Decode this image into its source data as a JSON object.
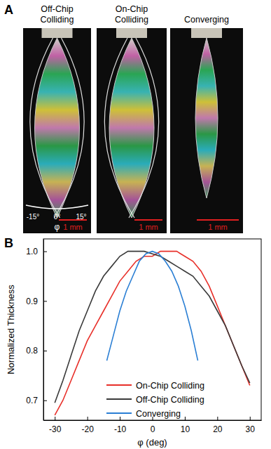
{
  "panel_labels": [
    "A",
    "B"
  ],
  "photos": [
    {
      "title": [
        "Off-Chip",
        "Colliding"
      ],
      "scale_bar": "1 mm"
    },
    {
      "title": [
        "On-Chip",
        "Colliding"
      ],
      "scale_bar": "1 mm"
    },
    {
      "title": [
        "Converging"
      ],
      "scale_bar": "1 mm"
    }
  ],
  "angle_labels": [
    "-15°",
    "0°",
    "15°"
  ],
  "angle_symbol": "φ",
  "chart_data": {
    "type": "line",
    "x_label": "φ (deg)",
    "y_label": "Normalized Thickness",
    "xlim": [
      -33.5,
      33.5
    ],
    "xticks": [
      -30,
      -20,
      -10,
      0,
      10,
      20,
      30
    ],
    "ylim": [
      0.66,
      1.025
    ],
    "yticks": [
      {
        "value": 0.7,
        "label": "0.7"
      },
      {
        "value": 0.8,
        "label": "0.8"
      },
      {
        "value": 0.9,
        "label": "0.9"
      },
      {
        "value": 1,
        "label": "1.0"
      }
    ],
    "legend": "lower center",
    "grid": false,
    "series": [
      {
        "name": "On-Chip Colliding",
        "color": "#e8302a",
        "x": [
          -30,
          -27.5,
          -25,
          -22.5,
          -20,
          -17.5,
          -15,
          -12.5,
          -10,
          -7.5,
          -5,
          -2.5,
          0,
          2.5,
          5,
          7.5,
          10,
          12.5,
          15,
          17.5,
          20,
          22.5,
          25,
          27.5,
          30
        ],
        "values": [
          0.67,
          0.7,
          0.74,
          0.78,
          0.82,
          0.85,
          0.88,
          0.91,
          0.94,
          0.96,
          0.98,
          0.99,
          0.99,
          1.0,
          1.0,
          1.0,
          0.99,
          0.98,
          0.96,
          0.93,
          0.89,
          0.85,
          0.81,
          0.77,
          0.73
        ]
      },
      {
        "name": "Off-Chip Colliding",
        "color": "#3a3a3a",
        "x": [
          -30,
          -27.5,
          -25,
          -22.5,
          -20,
          -17.5,
          -15,
          -12.5,
          -10,
          -7.5,
          -5,
          -2.5,
          0,
          2.5,
          5,
          7.5,
          10,
          12.5,
          15,
          17.5,
          20,
          22.5,
          25,
          27.5,
          30
        ],
        "values": [
          0.695,
          0.74,
          0.79,
          0.84,
          0.88,
          0.92,
          0.95,
          0.97,
          0.99,
          1.0,
          1.0,
          1.0,
          0.995,
          0.99,
          0.98,
          0.97,
          0.96,
          0.95,
          0.93,
          0.91,
          0.88,
          0.85,
          0.81,
          0.77,
          0.735
        ]
      },
      {
        "name": "Converging",
        "color": "#2b7fd4",
        "x": [
          -14,
          -12,
          -10,
          -8,
          -6,
          -4,
          -2,
          0,
          2,
          4,
          6,
          8,
          10,
          12,
          14
        ],
        "values": [
          0.78,
          0.83,
          0.88,
          0.92,
          0.95,
          0.98,
          0.995,
          1.0,
          0.995,
          0.98,
          0.96,
          0.93,
          0.89,
          0.84,
          0.78
        ]
      }
    ]
  }
}
